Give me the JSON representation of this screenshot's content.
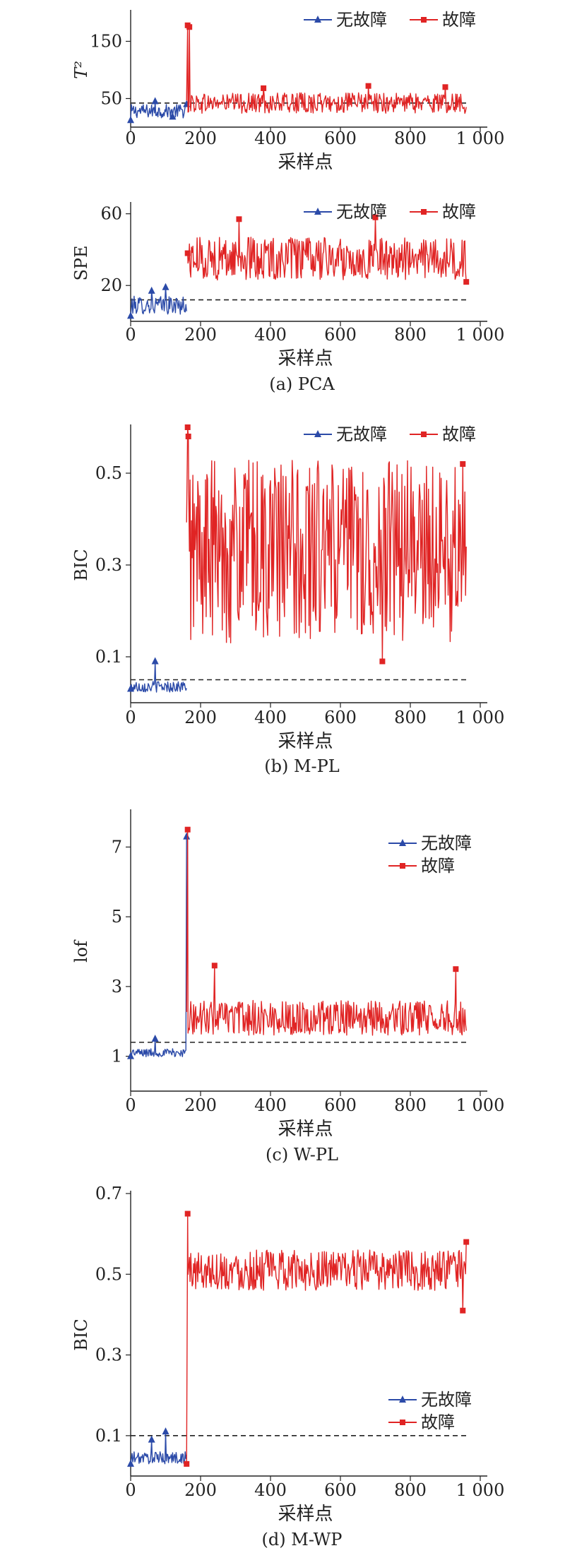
{
  "colors": {
    "normal": "#2b4aa8",
    "fault": "#e02424",
    "axis": "#222222"
  },
  "chart_data": [
    {
      "id": "pca_t2",
      "type": "line",
      "caption": "",
      "ylabel": "T²",
      "xlabel": "采样点",
      "xlim": [
        0,
        1000
      ],
      "ylim": [
        0,
        200
      ],
      "xticks": [
        0,
        200,
        400,
        600,
        800,
        1000
      ],
      "xtick_labels": [
        "0",
        "200",
        "400",
        "600",
        "800",
        "1 000"
      ],
      "yticks": [
        50,
        150
      ],
      "ytick_labels": [
        "50",
        "150"
      ],
      "threshold": 42,
      "threshold_xrange": [
        0,
        960
      ],
      "legend": {
        "labels": [
          "无故障",
          "故障"
        ],
        "position": "top-right",
        "layout": "horizontal"
      },
      "series": [
        {
          "name": "无故障",
          "marker": "triangle",
          "color_key": "normal",
          "x_range": [
            0,
            160
          ],
          "base": 28,
          "amp": 12,
          "low": 8,
          "spikes": [
            [
              0,
              12
            ],
            [
              70,
              45
            ],
            [
              120,
              18
            ],
            [
              160,
              40
            ]
          ]
        },
        {
          "name": "故障",
          "marker": "square",
          "color_key": "fault",
          "x_range": [
            160,
            960
          ],
          "base": 42,
          "amp": 18,
          "low": 18,
          "spikes": [
            [
              163,
              178
            ],
            [
              168,
              175
            ],
            [
              380,
              68
            ],
            [
              680,
              72
            ],
            [
              900,
              70
            ]
          ]
        }
      ]
    },
    {
      "id": "pca_spe",
      "type": "line",
      "caption": "(a) PCA",
      "ylabel": "SPE",
      "xlabel": "采样点",
      "xlim": [
        0,
        1000
      ],
      "ylim": [
        0,
        65
      ],
      "xticks": [
        0,
        200,
        400,
        600,
        800,
        1000
      ],
      "xtick_labels": [
        "0",
        "200",
        "400",
        "600",
        "800",
        "1 000"
      ],
      "yticks": [
        20,
        60
      ],
      "ytick_labels": [
        "20",
        "60"
      ],
      "threshold": 12,
      "threshold_xrange": [
        0,
        960
      ],
      "legend": {
        "labels": [
          "无故障",
          "故障"
        ],
        "position": "top-right",
        "layout": "horizontal"
      },
      "series": [
        {
          "name": "无故障",
          "marker": "triangle",
          "color_key": "normal",
          "x_range": [
            0,
            160
          ],
          "base": 9,
          "amp": 5,
          "low": 2,
          "spikes": [
            [
              0,
              3
            ],
            [
              100,
              19
            ],
            [
              60,
              17
            ]
          ]
        },
        {
          "name": "故障",
          "marker": "square",
          "color_key": "fault",
          "x_range": [
            160,
            960
          ],
          "base": 35,
          "amp": 12,
          "low": 18,
          "spikes": [
            [
              163,
              38
            ],
            [
              310,
              57
            ],
            [
              700,
              58
            ],
            [
              960,
              22
            ]
          ]
        }
      ]
    },
    {
      "id": "mpl_bic",
      "type": "line",
      "caption": "(b) M-PL",
      "ylabel": "BIC",
      "xlabel": "采样点",
      "xlim": [
        0,
        1000
      ],
      "ylim": [
        0,
        0.6
      ],
      "xticks": [
        0,
        200,
        400,
        600,
        800,
        1000
      ],
      "xtick_labels": [
        "0",
        "200",
        "400",
        "600",
        "800",
        "1 000"
      ],
      "yticks": [
        0.1,
        0.3,
        0.5
      ],
      "ytick_labels": [
        "0.1",
        "0.3",
        "0.5"
      ],
      "threshold": 0.05,
      "threshold_xrange": [
        0,
        960
      ],
      "legend": {
        "labels": [
          "无故障",
          "故障"
        ],
        "position": "top-right",
        "layout": "horizontal"
      },
      "series": [
        {
          "name": "无故障",
          "marker": "triangle",
          "color_key": "normal",
          "x_range": [
            0,
            160
          ],
          "base": 0.035,
          "amp": 0.012,
          "low": 0.02,
          "spikes": [
            [
              70,
              0.09
            ],
            [
              0,
              0.03
            ]
          ]
        },
        {
          "name": "故障",
          "marker": "square",
          "color_key": "fault",
          "x_range": [
            160,
            960
          ],
          "base": 0.33,
          "amp": 0.2,
          "low": 0.08,
          "spikes": [
            [
              163,
              0.6
            ],
            [
              165,
              0.58
            ],
            [
              720,
              0.09
            ],
            [
              950,
              0.52
            ]
          ]
        }
      ]
    },
    {
      "id": "wpl_lof",
      "type": "line",
      "caption": "(c) W-PL",
      "ylabel": "lof",
      "xlabel": "采样点",
      "xlim": [
        0,
        1000
      ],
      "ylim": [
        0,
        8
      ],
      "xticks": [
        0,
        200,
        400,
        600,
        800,
        1000
      ],
      "xtick_labels": [
        "0",
        "200",
        "400",
        "600",
        "800",
        "1 000"
      ],
      "yticks": [
        1,
        3,
        5,
        7
      ],
      "ytick_labels": [
        "1",
        "3",
        "5",
        "7"
      ],
      "threshold": 1.4,
      "threshold_xrange": [
        0,
        960
      ],
      "legend": {
        "labels": [
          "无故障",
          "故障"
        ],
        "position": "top-right",
        "layout": "vertical"
      },
      "series": [
        {
          "name": "无故障",
          "marker": "triangle",
          "color_key": "normal",
          "x_range": [
            0,
            160
          ],
          "base": 1.1,
          "amp": 0.12,
          "low": 0.95,
          "spikes": [
            [
              0,
              1.0
            ],
            [
              70,
              1.5
            ],
            [
              160,
              7.3
            ]
          ]
        },
        {
          "name": "故障",
          "marker": "square",
          "color_key": "fault",
          "x_range": [
            160,
            960
          ],
          "base": 2.1,
          "amp": 0.5,
          "low": 1.3,
          "spikes": [
            [
              163,
              7.5
            ],
            [
              240,
              3.6
            ],
            [
              930,
              3.5
            ]
          ]
        }
      ]
    },
    {
      "id": "mwp_bic",
      "type": "line",
      "caption": "(d) M-WP",
      "ylabel": "BIC",
      "xlabel": "采样点",
      "xlim": [
        0,
        1000
      ],
      "ylim": [
        0,
        0.7
      ],
      "xticks": [
        0,
        200,
        400,
        600,
        800,
        1000
      ],
      "xtick_labels": [
        "0",
        "200",
        "400",
        "600",
        "800",
        "1 000"
      ],
      "yticks": [
        0.1,
        0.3,
        0.5,
        0.7
      ],
      "ytick_labels": [
        "0.1",
        "0.3",
        "0.5",
        "0.7"
      ],
      "threshold": 0.1,
      "threshold_xrange": [
        0,
        960
      ],
      "legend": {
        "labels": [
          "无故障",
          "故障"
        ],
        "position": "right",
        "layout": "vertical"
      },
      "series": [
        {
          "name": "无故障",
          "marker": "triangle",
          "color_key": "normal",
          "x_range": [
            0,
            160
          ],
          "base": 0.045,
          "amp": 0.015,
          "low": 0.025,
          "spikes": [
            [
              100,
              0.11
            ],
            [
              60,
              0.09
            ],
            [
              0,
              0.03
            ]
          ]
        },
        {
          "name": "故障",
          "marker": "square",
          "color_key": "fault",
          "x_range": [
            160,
            960
          ],
          "base": 0.51,
          "amp": 0.05,
          "low": 0.41,
          "spikes": [
            [
              160,
              0.03
            ],
            [
              163,
              0.65
            ],
            [
              950,
              0.41
            ],
            [
              960,
              0.58
            ]
          ]
        }
      ]
    }
  ]
}
